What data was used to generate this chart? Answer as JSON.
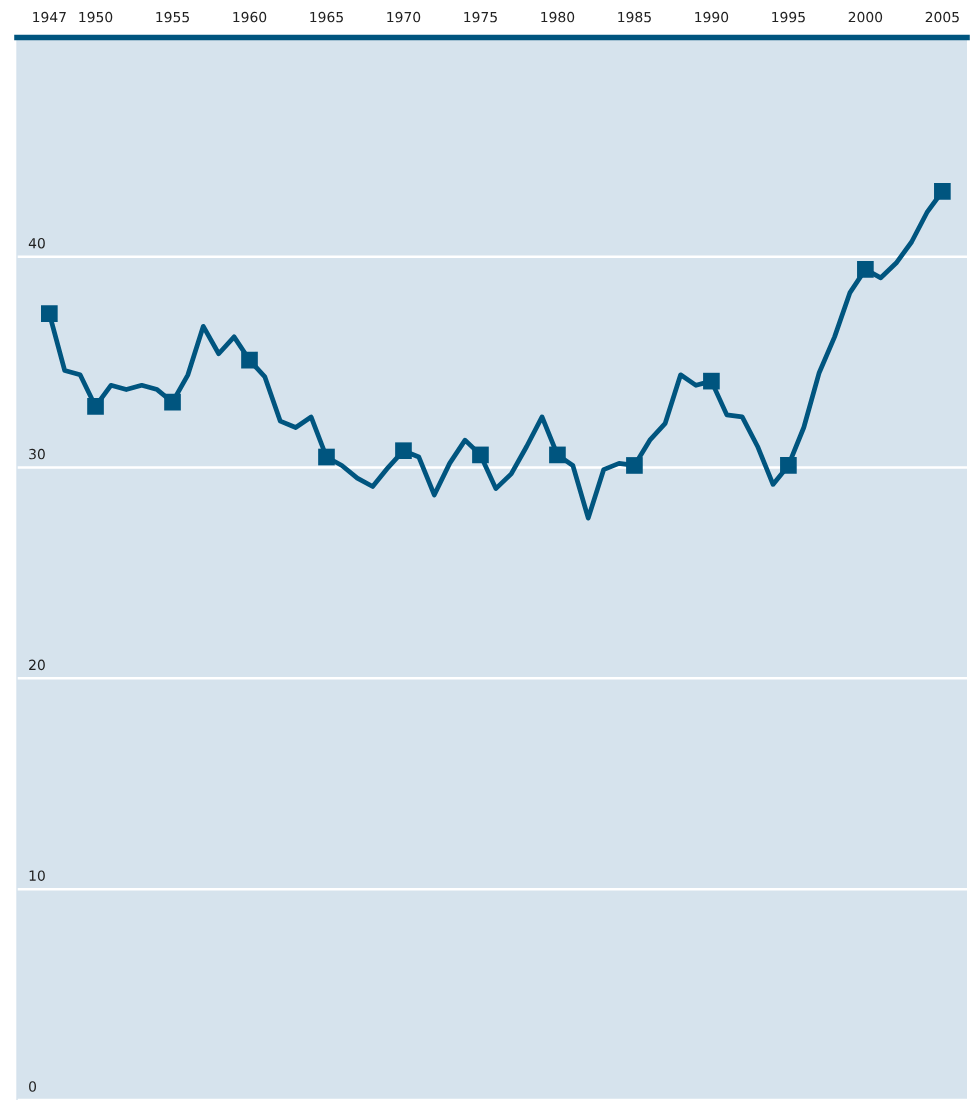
{
  "chart_data": {
    "type": "line",
    "x": [
      1947,
      1948,
      1949,
      1950,
      1951,
      1952,
      1953,
      1954,
      1955,
      1956,
      1957,
      1958,
      1959,
      1960,
      1961,
      1962,
      1963,
      1964,
      1965,
      1966,
      1967,
      1968,
      1969,
      1970,
      1971,
      1972,
      1973,
      1974,
      1975,
      1976,
      1977,
      1978,
      1979,
      1980,
      1981,
      1982,
      1983,
      1984,
      1985,
      1986,
      1987,
      1988,
      1989,
      1990,
      1991,
      1992,
      1993,
      1994,
      1995,
      1996,
      1997,
      1998,
      1999,
      2000,
      2001,
      2002,
      2003,
      2004,
      2005
    ],
    "series": [
      {
        "color": "#00557f",
        "marker": "none",
        "values": [
          37.3,
          34.6,
          34.4,
          32.9,
          33.9,
          33.7,
          33.9,
          33.7,
          33.1,
          34.4,
          36.7,
          35.4,
          36.2,
          35.1,
          34.3,
          32.2,
          31.9,
          32.4,
          30.5,
          30.1,
          29.5,
          29.1,
          30.0,
          30.8,
          30.5,
          28.7,
          30.2,
          31.3,
          30.6,
          29.0,
          29.7,
          31.0,
          32.4,
          30.6,
          30.1,
          27.6,
          29.9,
          30.2,
          30.1,
          31.3,
          32.1,
          34.4,
          33.9,
          34.1,
          32.5,
          32.4,
          31.0,
          29.2,
          30.1,
          31.9,
          34.5,
          36.2,
          38.3,
          39.4,
          39.0,
          39.7,
          40.7,
          42.1,
          43.1
        ]
      },
      {
        "type": "scatter",
        "color": "#00557f",
        "x": [
          1947,
          1950,
          1955,
          1960,
          1965,
          1970,
          1975,
          1980,
          1985,
          1990,
          1995,
          2000,
          2005
        ],
        "values": [
          37.3,
          32.9,
          33.1,
          35.1,
          30.5,
          30.8,
          30.6,
          30.6,
          30.1,
          34.1,
          30.1,
          39.4,
          43.1
        ]
      }
    ],
    "xlim": [
      1944.9,
      2006.6
    ],
    "xticks": [
      1947,
      1950,
      1955,
      1960,
      1965,
      1970,
      1975,
      1980,
      1985,
      1990,
      1995,
      2000,
      2005
    ],
    "ylim": [
      0,
      50.4
    ],
    "yticks": [
      0,
      10,
      20,
      30,
      40
    ],
    "grid": "y",
    "marker": "square",
    "line_style": "solid"
  }
}
